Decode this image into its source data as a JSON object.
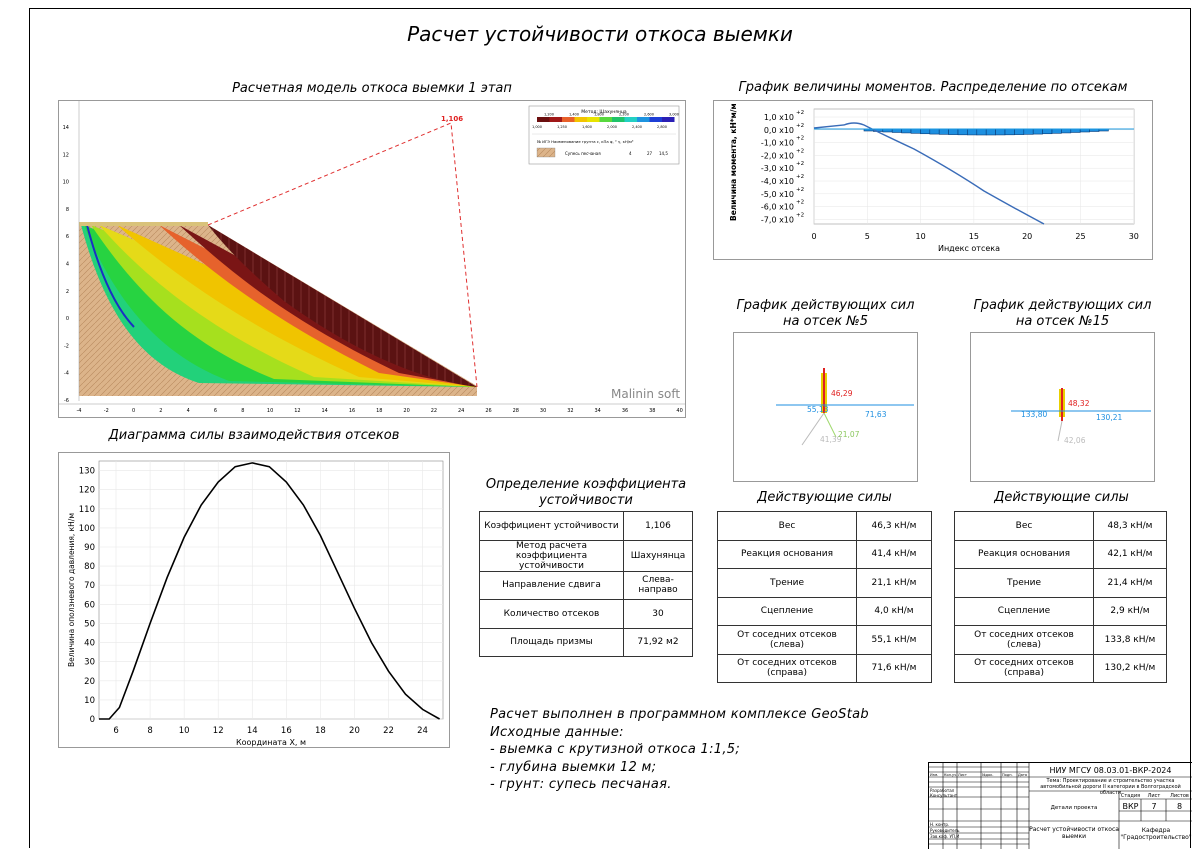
{
  "page": {
    "title": "Расчет устойчивости откоса выемки"
  },
  "model": {
    "title": "Расчетная модель откоса выемки 1 этап",
    "coef_label": "1,106",
    "watermark": "Malinin soft",
    "legend": {
      "method": "Метод: Шахунянца",
      "scale_top": [
        "1,200",
        "1,400",
        "1,800",
        "2,200",
        "2,600",
        "3,000"
      ],
      "scale_bottom": [
        "1,000",
        "1,250",
        "1,600",
        "2,000",
        "2,400",
        "2,800"
      ],
      "scale_colors": [
        "#6b0f0f",
        "#a01818",
        "#e8602a",
        "#f3c400",
        "#e8e300",
        "#58d83e",
        "#1fc36a",
        "#23d0c4",
        "#1e94e0",
        "#1d3ed6",
        "#2a1fb5"
      ],
      "header": "№ ИГЭ  Наименование грунта  c, кПа  φ, °  γ, кН/м³",
      "soil_name": "Супесь песчаная",
      "soil_c": "4",
      "soil_phi": "27",
      "soil_gamma": "14,5"
    },
    "x_ticks": [
      "-4",
      "-2",
      "0",
      "2",
      "4",
      "6",
      "8",
      "10",
      "12",
      "14",
      "16",
      "18",
      "20",
      "22",
      "24",
      "26",
      "28",
      "30",
      "32",
      "34",
      "36",
      "38",
      "40"
    ],
    "y_ticks": [
      "14",
      "12",
      "10",
      "8",
      "6",
      "4",
      "2",
      "0",
      "-2",
      "-4",
      "-6"
    ]
  },
  "moment_chart": {
    "title": "График величины моментов. Распределение по отсекам",
    "ylabel": "Величина момента, кН*м/м",
    "xlabel": "Индекс отсека",
    "y_ticks": [
      "1,0 х10",
      "0,0 х10",
      "-1,0 х10",
      "-2,0 х10",
      "-3,0 х10",
      "-4,0 х10",
      "-5,0 х10",
      "-6,0 х10",
      "-7,0 х10"
    ],
    "exp": "+2",
    "x_ticks": [
      "0",
      "5",
      "10",
      "15",
      "20",
      "25",
      "30"
    ]
  },
  "force5": {
    "title_line1": "График действующих сил",
    "title_line2": "на отсек №5",
    "labels": {
      "weight": "46,29",
      "left": "55,13",
      "right": "71,63",
      "reaction": "41,39",
      "friction": "21,07"
    },
    "table_title": "Действующие силы",
    "rows": [
      [
        "Вес",
        "46,3 кН/м"
      ],
      [
        "Реакция основания",
        "41,4 кН/м"
      ],
      [
        "Трение",
        "21,1 кН/м"
      ],
      [
        "Сцепление",
        "4,0 кН/м"
      ],
      [
        "От соседних отсеков (слева)",
        "55,1 кН/м"
      ],
      [
        "От соседних отсеков (справа)",
        "71,6 кН/м"
      ]
    ]
  },
  "force15": {
    "title_line1": "График действующих сил",
    "title_line2": "на отсек №15",
    "labels": {
      "weight": "48,32",
      "left": "133,80",
      "right": "130,21",
      "reaction": "42,06"
    },
    "table_title": "Действующие силы",
    "rows": [
      [
        "Вес",
        "48,3 кН/м"
      ],
      [
        "Реакция основания",
        "42,1 кН/м"
      ],
      [
        "Трение",
        "21,4 кН/м"
      ],
      [
        "Сцепление",
        "2,9 кН/м"
      ],
      [
        "От соседних отсеков (слева)",
        "133,8 кН/м"
      ],
      [
        "От соседних отсеков (справа)",
        "130,2 кН/м"
      ]
    ]
  },
  "coef_table": {
    "title_line1": "Определение коэффициента",
    "title_line2": "устойчивости",
    "rows": [
      [
        "Коэффициент устойчивости",
        "1,106"
      ],
      [
        "Метод расчета коэффициента устойчивости",
        "Шахунянца"
      ],
      [
        "Направление сдвига",
        "Слева-направо"
      ],
      [
        "Количество отсеков",
        "30"
      ],
      [
        "Площадь призмы",
        "71,92 м2"
      ]
    ]
  },
  "chart_data": {
    "type": "line",
    "title": "Диаграмма силы взаимодействия отсеков",
    "xlabel": "Координата X, м",
    "ylabel": "Величина оползневого давления, кН/м",
    "x_ticks": [
      "6",
      "8",
      "10",
      "12",
      "14",
      "16",
      "18",
      "20",
      "22",
      "24"
    ],
    "y_ticks": [
      "0",
      "10",
      "20",
      "30",
      "40",
      "50",
      "60",
      "70",
      "80",
      "90",
      "100",
      "110",
      "120",
      "130"
    ],
    "xlim": [
      5,
      25.2
    ],
    "ylim": [
      0,
      135
    ],
    "grid": true,
    "series": [
      {
        "x": [
          5.0,
          5.6,
          6.2,
          7.0,
          8.0,
          9.0,
          10.0,
          11.0,
          12.0,
          13.0,
          14.0,
          15.0,
          16.0,
          17.0,
          18.0,
          19.0,
          20.0,
          21.0,
          22.0,
          23.0,
          24.0,
          24.6,
          25.0
        ],
        "y": [
          0,
          0,
          6,
          25,
          50,
          74,
          95,
          112,
          124,
          132,
          134,
          132,
          124,
          112,
          96,
          77,
          58,
          40,
          25,
          13,
          5,
          2,
          0
        ]
      }
    ]
  },
  "notes": {
    "line1": "Расчет выполнен в программном комплексе GeoStab",
    "line2": "Исходные данные:",
    "line3": "- выемка с крутизной откоса 1:1,5;",
    "line4": "- глубина выемки 12 м;",
    "line5": "- грунт: супесь песчаная."
  },
  "stamp": {
    "code": "НИУ МГСУ 08.03.01-ВКР-2024",
    "topic": "Тема: Проектирование и строительство участка автомобильной дороги II категории в Волгоградской области",
    "project": "Детали проекта",
    "sheet_title": "Расчет устойчивости откоса выемки",
    "stage_h": "Стадия",
    "sheet_h": "Лист",
    "sheets_h": "Листов",
    "stage": "ВКР",
    "sheet": "7",
    "sheets": "8",
    "dept": "Кафедра \"Градостроительство\"",
    "left_rows": [
      "Изм.",
      "Кол.уч.",
      "Лист",
      "№док.",
      "Подп.",
      "Дата",
      "Разработал",
      "Консультант",
      "Н. контр.",
      "Руководитель",
      "Зав.каф. УП,И"
    ]
  }
}
